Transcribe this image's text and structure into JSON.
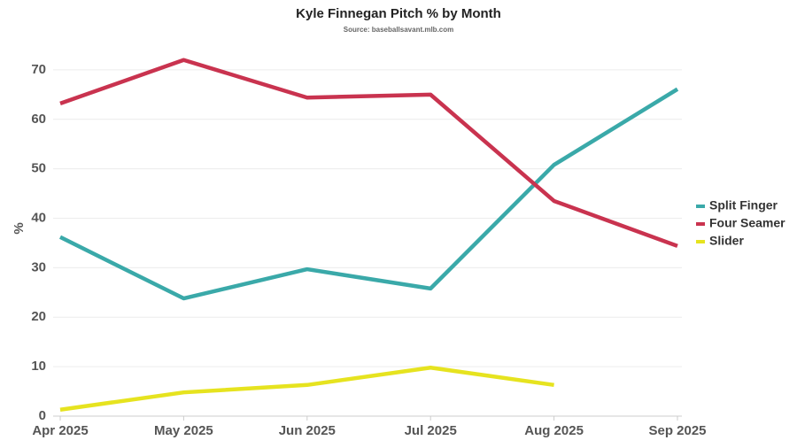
{
  "chart_data": {
    "type": "line",
    "title": "Kyle Finnegan Pitch % by Month",
    "subtitle": "Source: baseballsavant.mlb.com",
    "y_label": "%",
    "categories": [
      "Apr 2025",
      "May 2025",
      "Jun 2025",
      "Jul 2025",
      "Aug 2025",
      "Sep 2025"
    ],
    "series": [
      {
        "name": "Split Finger",
        "color": "#3aa9a9",
        "values": [
          36.2,
          23.8,
          29.7,
          25.8,
          50.8,
          66.1
        ]
      },
      {
        "name": "Four Seamer",
        "color": "#c9334f",
        "values": [
          63.2,
          72.0,
          64.4,
          65.0,
          43.5,
          34.4
        ]
      },
      {
        "name": "Slider",
        "color": "#e6e31f",
        "values": [
          1.3,
          4.8,
          6.3,
          9.8,
          6.3,
          null
        ]
      }
    ],
    "ylim": [
      0,
      75
    ],
    "yticks": [
      0,
      10,
      20,
      30,
      40,
      50,
      60,
      70
    ],
    "grid": true,
    "legend": "right"
  }
}
